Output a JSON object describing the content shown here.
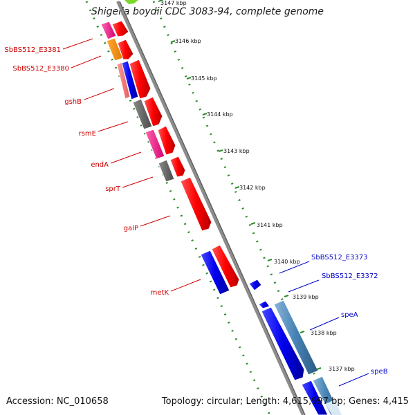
{
  "title": "Shigella boydii CDC 3083-94, complete genome",
  "footer": {
    "accession": "Accession: NC_010658",
    "summary": "Topology: circular; Length: 4,615,997 bp; Genes: 4,415"
  },
  "colors": {
    "label_left": "#cc0000",
    "label_right": "#0000cc",
    "tick_green": "#2e8b2e",
    "backbone": "#8c8c8c"
  },
  "scale_ticks": [
    {
      "label": "3147 kbp"
    },
    {
      "label": "3146 kbp"
    },
    {
      "label": "3145 kbp"
    },
    {
      "label": "3144 kbp"
    },
    {
      "label": "3143 kbp"
    },
    {
      "label": "3142 kbp"
    },
    {
      "label": "3141 kbp"
    },
    {
      "label": "3140 kbp"
    },
    {
      "label": "3139 kbp"
    },
    {
      "label": "3138 kbp"
    },
    {
      "label": "3137 kbp"
    }
  ],
  "genes_left": [
    {
      "label": "SbBS512_E3381"
    },
    {
      "label": "SbBS512_E3380"
    },
    {
      "label": "gshB"
    },
    {
      "label": "rsmE"
    },
    {
      "label": "endA"
    },
    {
      "label": "sprT"
    },
    {
      "label": "galP"
    },
    {
      "label": "metK"
    }
  ],
  "genes_right": [
    {
      "label": "SbBS512_E3373"
    },
    {
      "label": "SbBS512_E3372"
    },
    {
      "label": "speA"
    },
    {
      "label": "speB"
    }
  ]
}
